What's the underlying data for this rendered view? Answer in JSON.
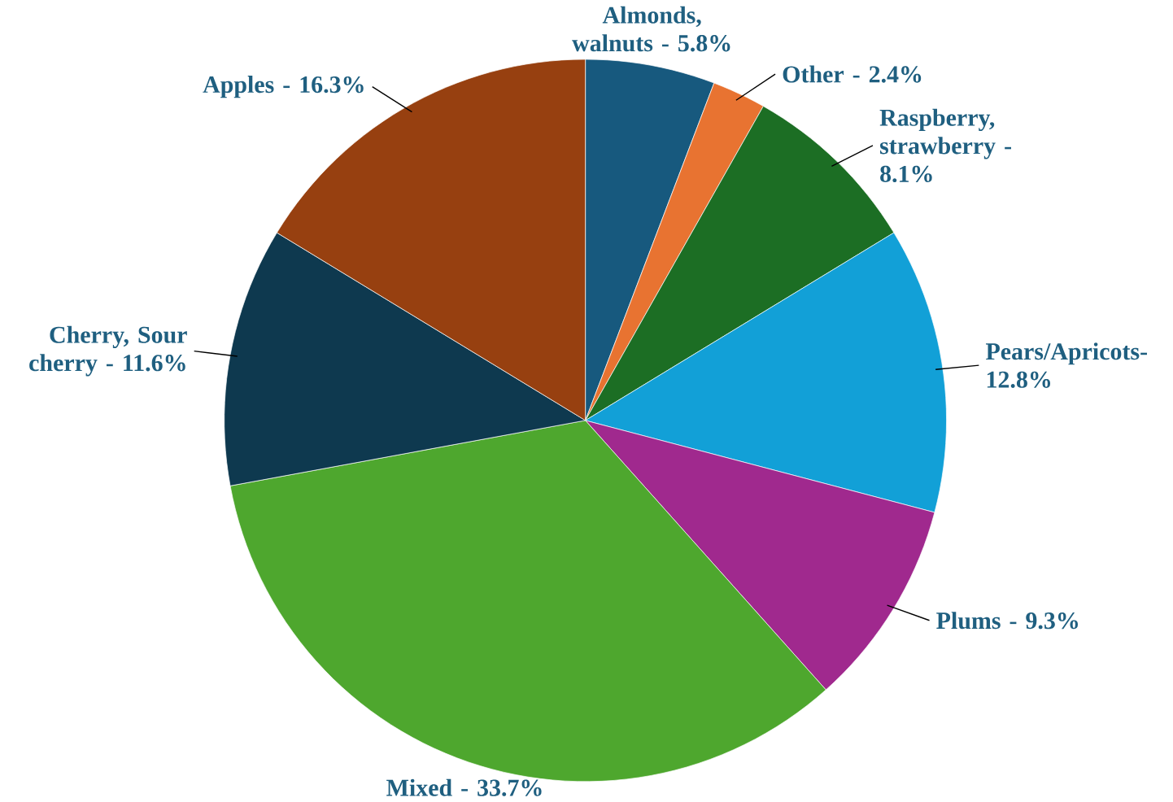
{
  "chart_data": {
    "type": "pie",
    "categories": [
      "Almonds, walnuts - 5.8%",
      "Other - 2.4%",
      "Raspberry, strawberry - 8.1%",
      "Pears/Apricots- 12.8%",
      "Plums - 9.3%",
      "Mixed - 33.7%",
      "Cherry, Sour cherry - 11.6%",
      "Apples - 16.3%"
    ],
    "values": [
      5.8,
      2.4,
      8.1,
      12.8,
      9.3,
      33.7,
      11.6,
      16.3
    ],
    "colors": [
      "#17597e",
      "#e87331",
      "#1c6e24",
      "#12a0d7",
      "#a0298e",
      "#4ea72e",
      "#0e394f",
      "#974010"
    ]
  }
}
